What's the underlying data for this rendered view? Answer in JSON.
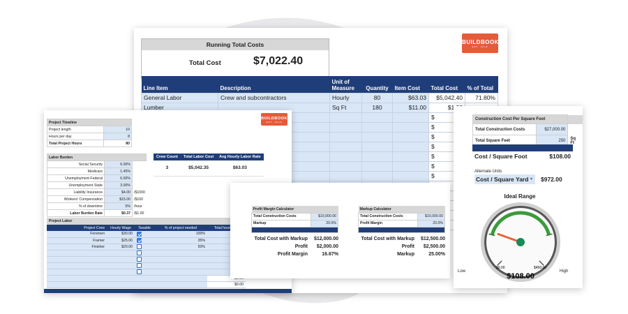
{
  "running_total": {
    "title": "Running Total Costs",
    "label": "Total Cost",
    "value": "$7,022.40"
  },
  "logo": {
    "main": "BUILDBOOK",
    "sub": "EST. 2019"
  },
  "line_items": {
    "columns": [
      "Line Item",
      "Description",
      "Unit of Measure",
      "Quantity",
      "Item Cost",
      "Total Cost",
      "% of Total"
    ],
    "rows": [
      [
        "General Labor",
        "Crew and subcontractors",
        "Hourly",
        "80",
        "$63.03",
        "$5,042.40",
        "71.80%"
      ],
      [
        "Lumber",
        "",
        "Sq Ft",
        "180",
        "$11.00",
        "$1,98",
        ""
      ]
    ],
    "dollar": "$"
  },
  "labor": {
    "timeline": {
      "title": "Project Timeline",
      "rows": [
        [
          "Project length",
          "10"
        ],
        [
          "Hours per day",
          "8"
        ],
        [
          "Total Project Hours",
          "80"
        ]
      ]
    },
    "burden": {
      "title": "Labor Burden",
      "rows": [
        [
          "Social Security",
          "6.00%",
          ""
        ],
        [
          "Medicare",
          "1.45%",
          ""
        ],
        [
          "Unemployment Federal",
          "6.00%",
          ""
        ],
        [
          "Unemployment State",
          "3.00%",
          ""
        ],
        [
          "Liability Insurance",
          "$4.00",
          "/$1000"
        ],
        [
          "Workers' Compensation",
          "$15.00",
          "/$100"
        ],
        [
          "% of downtime",
          "5%",
          "/hour"
        ],
        [
          "Labor Burden Rate",
          "$0.37",
          "/$1.00"
        ]
      ]
    },
    "crew": {
      "columns": [
        "Crew Count",
        "Total Labor Cost",
        "Avg Hourly Labor Rate"
      ],
      "values": [
        "3",
        "$5,042.35",
        "$63.03"
      ]
    },
    "project_labor": {
      "title": "Project Labor",
      "columns": [
        "Project Crew",
        "Hourly Wage",
        "Taxable",
        "% of project needed",
        "Total hourly bur"
      ],
      "rows": [
        [
          "Foremen",
          "$30.00",
          "100%",
          "$4"
        ],
        [
          "Framer",
          "$25.00",
          "35%",
          "$3"
        ],
        [
          "Finisher",
          "$20.00",
          "50%",
          "$2"
        ]
      ],
      "totals": [
        "$0.00",
        "$0.00"
      ]
    }
  },
  "profit_margin": {
    "title": "Profit Margin Calculator",
    "rows": [
      [
        "Total Construction Costs",
        "$10,000.00"
      ],
      [
        "Markup",
        "20.0%"
      ]
    ],
    "results": [
      [
        "Total Cost with Markup",
        "$12,000.00"
      ],
      [
        "Profit",
        "$2,000.00"
      ],
      [
        "Profit Margin",
        "16.67%"
      ]
    ]
  },
  "markup_calc": {
    "title": "Markup Calculator",
    "rows": [
      [
        "Total Construction Costs",
        "$10,000.00"
      ],
      [
        "Profit Margin",
        "20.0%"
      ]
    ],
    "results": [
      [
        "Total Cost with Markup",
        "$12,500.00"
      ],
      [
        "Profit",
        "$2,500.00"
      ],
      [
        "Markup",
        "25.00%"
      ]
    ]
  },
  "sqft": {
    "title": "Construction Cost Per Square Foot",
    "rows": [
      [
        "Total Construction Costs",
        "$27,000.00",
        ""
      ],
      [
        "Total Square Feet",
        "250",
        "Sq Ft"
      ]
    ],
    "cost_label": "Cost / Square Foot",
    "cost_value": "$108.00",
    "alt_label": "Alternate Units",
    "alt_unit": "Cost / Square Yard",
    "alt_value": "$972.00",
    "gauge": {
      "title": "Ideal Range",
      "value": "$108.00",
      "min_label": "$0.00",
      "max_label": "$450.00",
      "low": "Low",
      "high": "High",
      "value_number": 108,
      "max_number": 450,
      "accent": "#3a9b3a",
      "needle": "#e8623a"
    }
  }
}
